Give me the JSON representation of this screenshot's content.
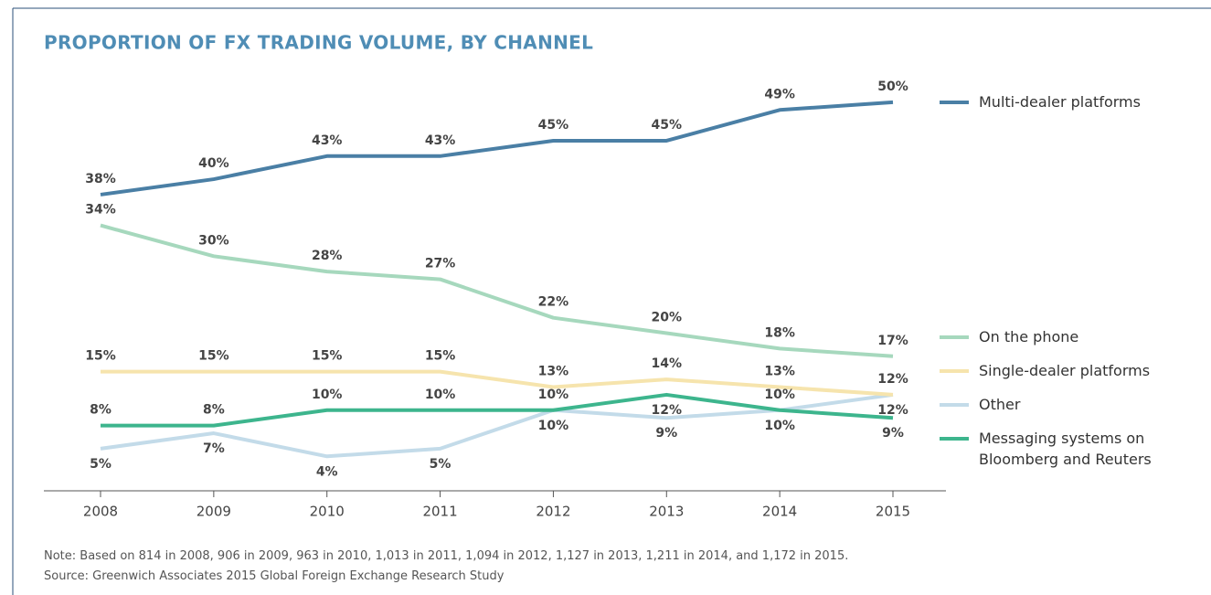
{
  "chart_data": {
    "type": "line",
    "title": "PROPORTION OF FX TRADING VOLUME, BY CHANNEL",
    "note": "Note: Based on 814 in 2008, 906 in 2009, 963 in 2010, 1,013 in 2011, 1,094 in 2012, 1,127 in 2013, 1,211 in 2014, and 1,172 in 2015.",
    "source": "Source: Greenwich Associates 2015 Global Foreign Exchange Research Study",
    "categories": [
      "2008",
      "2009",
      "2010",
      "2011",
      "2012",
      "2013",
      "2014",
      "2015"
    ],
    "ylim": [
      0,
      52
    ],
    "series": [
      {
        "name": "Multi-dealer platforms",
        "color": "#4a7fa5",
        "values": [
          38,
          40,
          43,
          43,
          45,
          45,
          49,
          50
        ],
        "value_labels": [
          "38%",
          "40%",
          "43%",
          "43%",
          "45%",
          "45%",
          "49%",
          "50%"
        ]
      },
      {
        "name": "On the phone",
        "color": "#a6d8bd",
        "values": [
          34,
          30,
          28,
          27,
          22,
          20,
          18,
          17
        ],
        "value_labels": [
          "34%",
          "30%",
          "28%",
          "27%",
          "22%",
          "20%",
          "18%",
          "17%"
        ]
      },
      {
        "name": "Single-dealer platforms",
        "color": "#f6e4ad",
        "values": [
          15,
          15,
          15,
          15,
          13,
          14,
          13,
          12
        ],
        "value_labels": [
          "15%",
          "15%",
          "15%",
          "15%",
          "13%",
          "14%",
          "13%",
          "12%"
        ]
      },
      {
        "name": "Other",
        "color": "#c3dbe9",
        "values": [
          5,
          7,
          4,
          5,
          10,
          9,
          10,
          12
        ],
        "value_labels": [
          "5%",
          "7%",
          "4%",
          "5%",
          "10%",
          "9%",
          "10%",
          "12%"
        ]
      },
      {
        "name": "Messaging systems on Bloomberg and Reuters",
        "color": "#3db58d",
        "values": [
          8,
          8,
          10,
          10,
          10,
          12,
          10,
          9
        ],
        "value_labels": [
          "8%",
          "8%",
          "10%",
          "10%",
          "10%",
          "12%",
          "10%",
          "9%"
        ]
      }
    ]
  }
}
